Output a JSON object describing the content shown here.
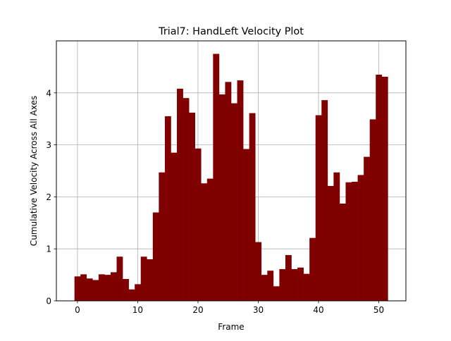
{
  "chart_data": {
    "type": "bar",
    "title": "Trial7: HandLeft Velocity Plot",
    "xlabel": "Frame",
    "ylabel": "Cumulative Velocity Across All Axes",
    "x": [
      0,
      1,
      2,
      3,
      4,
      5,
      6,
      7,
      8,
      9,
      10,
      11,
      12,
      13,
      14,
      15,
      16,
      17,
      18,
      19,
      20,
      21,
      22,
      23,
      24,
      25,
      26,
      27,
      28,
      29,
      30,
      31,
      32,
      33,
      34,
      35,
      36,
      37,
      38,
      39,
      40,
      41,
      42,
      43,
      44,
      45,
      46,
      47,
      48,
      49,
      50,
      51
    ],
    "values": [
      0.47,
      0.51,
      0.43,
      0.4,
      0.51,
      0.5,
      0.55,
      0.85,
      0.42,
      0.22,
      0.32,
      0.85,
      0.8,
      1.7,
      2.47,
      3.55,
      2.85,
      4.08,
      3.9,
      3.62,
      2.93,
      2.26,
      2.35,
      4.75,
      3.97,
      4.21,
      3.8,
      4.24,
      2.92,
      3.61,
      1.13,
      0.5,
      0.58,
      0.28,
      0.61,
      0.88,
      0.61,
      0.64,
      0.52,
      1.21,
      3.57,
      3.86,
      2.21,
      2.47,
      1.87,
      2.28,
      2.29,
      2.42,
      2.77,
      3.49,
      4.35,
      4.31
    ],
    "xlim": [
      -3.5,
      54.5
    ],
    "ylim": [
      0,
      5
    ],
    "xticks": [
      0,
      10,
      20,
      30,
      40,
      50
    ],
    "yticks": [
      0,
      1,
      2,
      3,
      4
    ],
    "grid": true,
    "bar_color": "#800000"
  }
}
